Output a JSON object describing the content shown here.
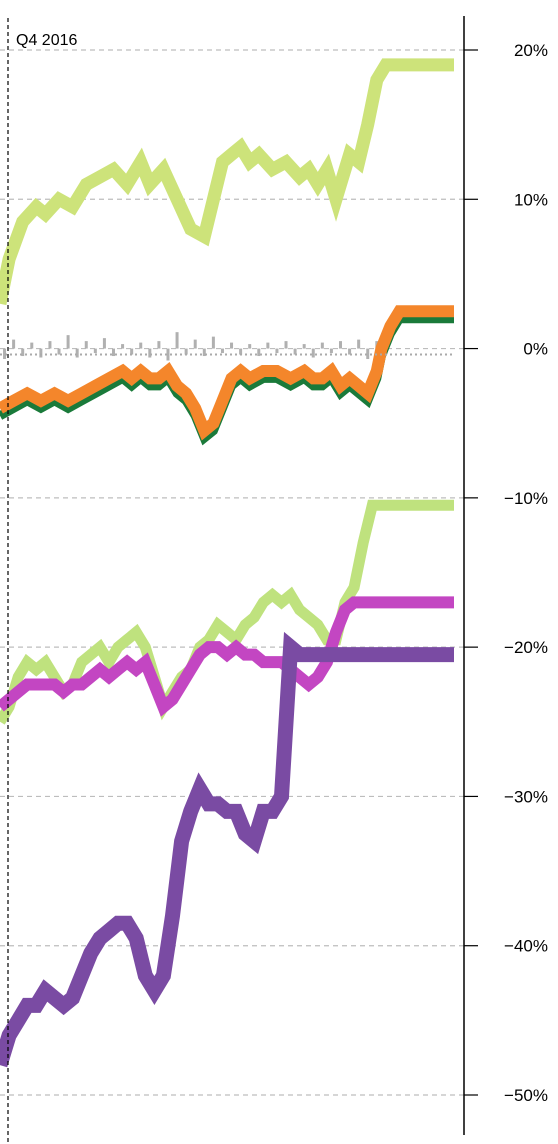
{
  "chart_data": {
    "type": "line",
    "annotation": "Q4 2016",
    "ylim": [
      -52,
      22.5
    ],
    "yticks": [
      20,
      10,
      0,
      -10,
      -20,
      -30,
      -40,
      -50
    ],
    "ytick_labels": [
      "20%",
      "10%",
      "0%",
      "−10%",
      "−20%",
      "−30%",
      "−40%",
      "−50%"
    ],
    "xlim": [
      0,
      100
    ],
    "grid": true,
    "legend": "none",
    "series": [
      {
        "color": "#cde37a",
        "width": 13,
        "opacity": 1,
        "x": [
          0,
          2,
          5,
          8,
          10,
          13,
          16,
          19,
          22,
          25,
          28,
          31,
          33,
          36,
          39,
          42,
          45,
          47,
          49,
          51,
          53,
          55,
          57,
          60,
          63,
          66,
          68,
          70,
          72,
          74,
          75,
          77,
          79,
          81,
          83,
          85,
          86,
          89,
          100
        ],
        "y": [
          3,
          6,
          8.5,
          9.5,
          9,
          10,
          9.5,
          11,
          11.5,
          12,
          11,
          12.5,
          11,
          12,
          10,
          8,
          7.5,
          10,
          12.5,
          13,
          13.5,
          12.5,
          13,
          12,
          12.5,
          11.5,
          12,
          11,
          12,
          10,
          11,
          13,
          12.5,
          15,
          18,
          19,
          19,
          19,
          19
        ]
      },
      {
        "color": "#1a7a3a",
        "width": 9,
        "opacity": 1,
        "x": [
          0,
          3,
          6,
          9,
          12,
          15,
          18,
          21,
          24,
          27,
          29,
          31,
          33,
          35,
          37,
          39,
          41,
          43,
          45,
          47,
          49,
          51,
          53,
          55,
          58,
          61,
          64,
          67,
          69,
          71,
          73,
          75,
          77,
          79,
          81,
          83,
          84,
          86,
          88,
          90,
          100
        ],
        "y": [
          -4.5,
          -4,
          -3.5,
          -4,
          -3.5,
          -4,
          -3.5,
          -3,
          -2.5,
          -2,
          -2.5,
          -2,
          -2.5,
          -2.5,
          -2,
          -3,
          -3.5,
          -4.5,
          -6,
          -5.5,
          -4,
          -2.5,
          -2,
          -2.5,
          -2,
          -2,
          -2.5,
          -2,
          -2.5,
          -2.5,
          -2,
          -3,
          -2.5,
          -3,
          -3.5,
          -2,
          -0.5,
          1,
          2,
          2,
          2
        ]
      },
      {
        "color": "#f4862b",
        "width": 12,
        "opacity": 1,
        "x": [
          0,
          3,
          6,
          9,
          12,
          15,
          18,
          21,
          24,
          27,
          29,
          31,
          33,
          35,
          37,
          39,
          41,
          43,
          45,
          47,
          49,
          51,
          53,
          55,
          58,
          61,
          64,
          67,
          69,
          71,
          73,
          75,
          77,
          79,
          81,
          83,
          84,
          86,
          88,
          90,
          100
        ],
        "y": [
          -4,
          -3.5,
          -3,
          -3.5,
          -3,
          -3.5,
          -3,
          -2.5,
          -2,
          -1.5,
          -2,
          -1.5,
          -2,
          -2,
          -1.5,
          -2.5,
          -3,
          -4,
          -5.5,
          -5,
          -3.5,
          -2,
          -1.5,
          -2,
          -1.5,
          -1.5,
          -2,
          -1.5,
          -2,
          -2,
          -1.5,
          -2.5,
          -2,
          -2.5,
          -3,
          -1.5,
          0,
          1.5,
          2.5,
          2.5,
          2.5
        ]
      },
      {
        "color": "#bfe27e",
        "width": 11,
        "opacity": 1,
        "x": [
          0,
          2,
          4,
          6,
          8,
          10,
          12,
          14,
          16,
          18,
          20,
          22,
          24,
          26,
          28,
          30,
          32,
          34,
          36,
          38,
          40,
          42,
          44,
          46,
          48,
          50,
          52,
          54,
          56,
          58,
          60,
          62,
          64,
          66,
          68,
          70,
          72,
          74,
          76,
          78,
          80,
          82,
          84,
          86,
          88,
          90,
          100
        ],
        "y": [
          -25,
          -24,
          -22,
          -21,
          -21.5,
          -21,
          -22,
          -23,
          -22.5,
          -21,
          -20.5,
          -20,
          -21,
          -20,
          -19.5,
          -19,
          -20,
          -22,
          -24,
          -23,
          -22,
          -21.5,
          -20,
          -19.5,
          -18.5,
          -19,
          -19.5,
          -18.5,
          -18,
          -17,
          -16.5,
          -17,
          -16.5,
          -17.5,
          -18,
          -18.5,
          -19.5,
          -19.5,
          -17,
          -16,
          -13,
          -10.5,
          -10.5,
          -10.5,
          -10.5,
          -10.5,
          -10.5
        ]
      },
      {
        "color": "#c346c2",
        "width": 12,
        "opacity": 1,
        "x": [
          0,
          2,
          4,
          6,
          8,
          10,
          12,
          14,
          16,
          18,
          20,
          22,
          24,
          26,
          28,
          30,
          32,
          34,
          36,
          38,
          40,
          42,
          44,
          46,
          48,
          50,
          52,
          54,
          56,
          58,
          60,
          62,
          64,
          66,
          68,
          70,
          72,
          74,
          76,
          78,
          80,
          82,
          84,
          86,
          88,
          90,
          100
        ],
        "y": [
          -24,
          -23.5,
          -23,
          -22.5,
          -22.5,
          -22.5,
          -22.5,
          -23,
          -22.5,
          -22.5,
          -22,
          -21.5,
          -22,
          -21.5,
          -21,
          -21.5,
          -21,
          -22.5,
          -24,
          -23.5,
          -22.5,
          -21.5,
          -20.5,
          -20,
          -20,
          -20.5,
          -20,
          -20.5,
          -20.5,
          -21,
          -21,
          -21,
          -21.5,
          -22,
          -22.5,
          -22,
          -21,
          -19,
          -17.5,
          -17,
          -17,
          -17,
          -17,
          -17,
          -17,
          -17,
          -17
        ]
      },
      {
        "color": "#7a4ba3",
        "width": 15,
        "opacity": 1,
        "x": [
          0,
          2,
          4,
          6,
          8,
          10,
          12,
          14,
          16,
          18,
          20,
          22,
          24,
          26,
          28,
          30,
          32,
          34,
          36,
          38,
          40,
          42,
          44,
          46,
          48,
          50,
          52,
          54,
          56,
          58,
          60,
          62,
          64,
          66,
          68,
          70,
          72,
          74,
          76,
          78,
          80,
          82,
          84,
          86,
          88,
          90,
          100
        ],
        "y": [
          -48,
          -46,
          -45,
          -44,
          -44,
          -43,
          -43.5,
          -44,
          -43.5,
          -42,
          -40.5,
          -39.5,
          -39,
          -38.5,
          -38.5,
          -39.5,
          -42,
          -43,
          -42,
          -38,
          -33,
          -31,
          -29.5,
          -30.5,
          -30.5,
          -31,
          -31,
          -32.5,
          -33,
          -31,
          -31,
          -30,
          -20,
          -20.5,
          -20.5,
          -20.5,
          -20.5,
          -20.5,
          -20.5,
          -20.5,
          -20.5,
          -20.5,
          -20.5,
          -20.5,
          -20.5,
          -20.5,
          -20.5
        ]
      },
      {
        "color": "#aaaaaa",
        "width": 2,
        "opacity": 1,
        "type": "dotted",
        "x": [
          0,
          100
        ],
        "y": [
          -0.4,
          -0.4
        ]
      }
    ],
    "volume_bars": {
      "color": "#b0b0b0",
      "x": [
        1,
        3,
        5,
        7,
        9,
        11,
        13,
        15,
        17,
        19,
        21,
        23,
        25,
        27,
        29,
        31,
        33,
        35,
        37,
        39,
        41,
        43,
        45,
        47,
        49,
        51,
        53,
        55,
        57,
        59,
        61,
        63,
        65,
        67,
        69,
        71,
        73,
        75,
        77,
        79,
        81,
        83,
        85
      ],
      "y": [
        -0.7,
        0.6,
        -0.5,
        0.4,
        -0.6,
        0.5,
        -0.4,
        0.9,
        -0.6,
        0.5,
        -0.3,
        0.7,
        -0.5,
        0.3,
        -0.4,
        0.4,
        -0.6,
        0.5,
        -0.8,
        1.1,
        -0.4,
        0.6,
        -0.5,
        0.8,
        -0.3,
        0.4,
        -0.4,
        0.3,
        -0.5,
        0.4,
        -0.3,
        0.5,
        -0.4,
        0.3,
        -0.6,
        0.4,
        -0.3,
        0.5,
        -0.4,
        0.6,
        -0.7,
        0.5,
        -0.4
      ]
    }
  }
}
